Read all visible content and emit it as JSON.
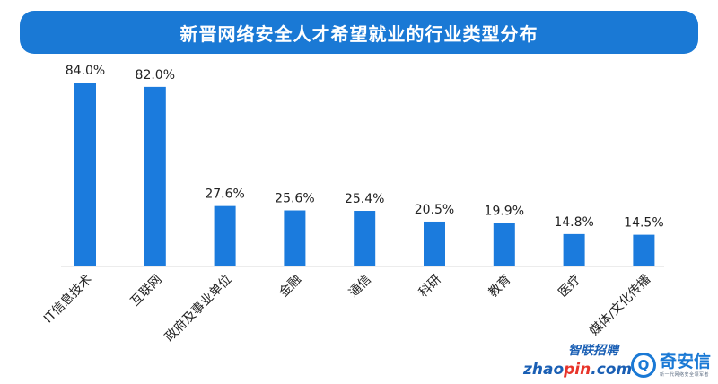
{
  "colors": {
    "bar": "#1b7bdd",
    "title_bg": "#1a79d5",
    "brand": "#1a5fb4"
  },
  "logos": {
    "zhaopin_cn": "智联招聘",
    "zhaopin_en_a": "zhao",
    "zhaopin_en_b": "pin",
    "zhaopin_en_c": ".com",
    "qax_name": "奇安信",
    "qax_tagline": "新一代网络安全领军者"
  },
  "chart_data": {
    "type": "bar",
    "title": "新晋网络安全人才希望就业的行业类型分布",
    "categories": [
      "IT信息技术",
      "互联网",
      "政府及事业单位",
      "金融",
      "通信",
      "科研",
      "教育",
      "医疗",
      "媒体/文化传播"
    ],
    "values": [
      84.0,
      82.0,
      27.6,
      25.6,
      25.4,
      20.5,
      19.9,
      14.8,
      14.5
    ],
    "value_labels": [
      "84.0%",
      "82.0%",
      "27.6%",
      "25.6%",
      "25.4%",
      "20.5%",
      "19.9%",
      "14.8%",
      "14.5%"
    ],
    "unit": "%",
    "ylim": [
      0,
      84
    ],
    "grid": false,
    "legend": "none"
  }
}
